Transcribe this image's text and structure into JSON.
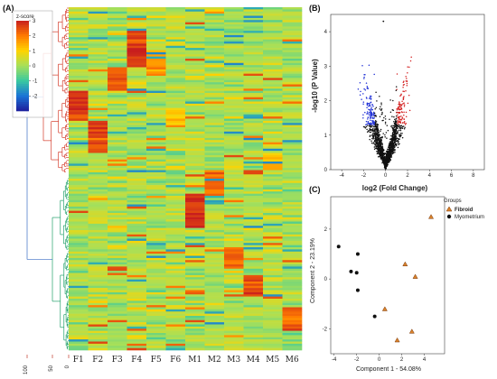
{
  "panels": {
    "A": "(A)",
    "B": "(B)",
    "C": "(C)"
  },
  "chart_data": [
    {
      "panel": "A",
      "type": "heatmap",
      "colorbar": {
        "title": "z-score",
        "ticks": [
          "3",
          "2",
          "1",
          "0",
          "-1",
          "-2"
        ],
        "range": [
          -3,
          3
        ],
        "colors": [
          "#c81e1e",
          "#ff7a00",
          "#ffd400",
          "#a6e05a",
          "#39c8a0",
          "#1a74d6",
          "#1e1e9c"
        ]
      },
      "columns": [
        "F1",
        "F2",
        "F3",
        "F4",
        "F5",
        "F6",
        "M1",
        "M2",
        "M3",
        "M4",
        "M5",
        "M6"
      ],
      "dendrogram_scale": [
        "100",
        "50",
        "0"
      ],
      "row_count": 160,
      "cluster_colors": {
        "top": "#d43a2a",
        "mid": "#3a6fc4",
        "bottom": "#23a06b"
      }
    },
    {
      "panel": "B",
      "type": "scatter",
      "xlabel": "log2 (Fold Change)",
      "ylabel": "-log10 (P Value)",
      "xlim": [
        -5,
        9
      ],
      "ylim": [
        0,
        4.5
      ],
      "xticks": [
        -4,
        -2,
        0,
        2,
        4,
        6,
        8
      ],
      "yticks": [
        0,
        1,
        2,
        3,
        4
      ],
      "colors": {
        "down": "#1f2fd6",
        "up": "#d42222",
        "ns": "#111111"
      }
    },
    {
      "panel": "C",
      "type": "scatter",
      "xlabel": "Component 1 - 54.08%",
      "ylabel": "Component 2 - 23.19%",
      "xlim": [
        -4.3,
        5.8
      ],
      "ylim": [
        -3.0,
        3.3
      ],
      "xticks": [
        -4,
        -2,
        0,
        2,
        4
      ],
      "yticks": [
        -2,
        0,
        2
      ],
      "legend": {
        "title": "Groups",
        "position": "right",
        "items": [
          {
            "label": "Fibroid",
            "color": "#d9822b",
            "marker": "triangle"
          },
          {
            "label": "Myometrium",
            "color": "#111111",
            "marker": "circle"
          }
        ]
      },
      "series": [
        {
          "name": "Fibroid",
          "points": [
            [
              4.6,
              2.5
            ],
            [
              2.3,
              0.6
            ],
            [
              3.2,
              0.1
            ],
            [
              0.5,
              -1.2
            ],
            [
              2.9,
              -2.1
            ],
            [
              1.6,
              -2.45
            ]
          ]
        },
        {
          "name": "Myometrium",
          "points": [
            [
              -3.6,
              1.3
            ],
            [
              -1.9,
              1.0
            ],
            [
              -2.5,
              0.3
            ],
            [
              -2.0,
              0.25
            ],
            [
              -1.9,
              -0.45
            ],
            [
              -0.4,
              -1.5
            ]
          ]
        }
      ]
    }
  ]
}
